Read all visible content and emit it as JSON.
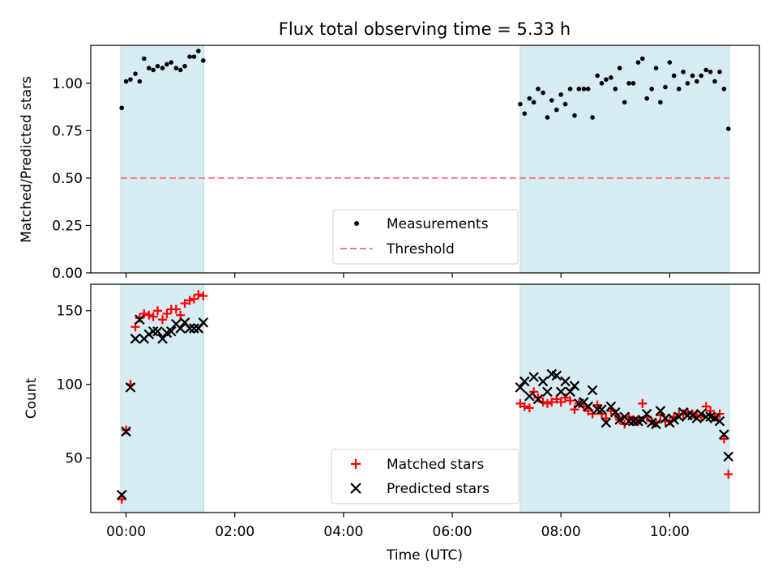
{
  "chart_data": [
    {
      "type": "scatter",
      "title": "Flux total observing time = 5.33 h",
      "xlabel": "",
      "ylabel": "Matched/Predicted stars",
      "x_unit": "hours since 00:00 UTC",
      "xlim": [
        -0.65,
        11.65
      ],
      "ylim": [
        0,
        1.2
      ],
      "yticks": [
        "0.00",
        "0.25",
        "0.50",
        "0.75",
        "1.00"
      ],
      "grid": false,
      "legend_position": "bottom-center",
      "shaded_intervals": [
        [
          -0.1,
          1.43
        ],
        [
          7.25,
          11.1
        ]
      ],
      "threshold": {
        "name": "Threshold",
        "value": 0.5,
        "x_range": [
          -0.1,
          11.1
        ]
      },
      "series": [
        {
          "name": "Measurements",
          "x": [
            -0.08,
            0.0,
            0.08,
            0.17,
            0.25,
            0.33,
            0.42,
            0.5,
            0.58,
            0.67,
            0.75,
            0.83,
            0.92,
            1.0,
            1.08,
            1.17,
            1.25,
            1.33,
            1.42,
            7.25,
            7.33,
            7.42,
            7.5,
            7.58,
            7.67,
            7.75,
            7.83,
            7.92,
            8.0,
            8.08,
            8.17,
            8.25,
            8.33,
            8.42,
            8.5,
            8.58,
            8.67,
            8.75,
            8.83,
            8.92,
            9.0,
            9.08,
            9.17,
            9.25,
            9.33,
            9.42,
            9.5,
            9.58,
            9.67,
            9.75,
            9.83,
            9.92,
            10.0,
            10.08,
            10.17,
            10.25,
            10.33,
            10.42,
            10.5,
            10.58,
            10.67,
            10.75,
            10.83,
            10.92,
            11.0,
            11.08
          ],
          "y": [
            0.87,
            1.01,
            1.02,
            1.05,
            1.01,
            1.13,
            1.08,
            1.07,
            1.09,
            1.08,
            1.1,
            1.11,
            1.08,
            1.07,
            1.09,
            1.14,
            1.14,
            1.17,
            1.12,
            0.89,
            0.84,
            0.92,
            0.9,
            0.97,
            0.95,
            0.82,
            0.91,
            0.86,
            0.94,
            0.89,
            0.97,
            0.83,
            0.97,
            0.97,
            0.97,
            0.82,
            1.04,
            1.0,
            1.02,
            1.03,
            0.97,
            1.08,
            0.9,
            1.0,
            1.0,
            1.11,
            1.13,
            0.92,
            0.97,
            1.08,
            0.9,
            0.98,
            1.11,
            1.04,
            0.97,
            1.06,
            1.0,
            1.04,
            1.01,
            1.04,
            1.07,
            1.06,
            1.01,
            1.06,
            0.97,
            0.76
          ]
        }
      ]
    },
    {
      "type": "scatter",
      "title": "",
      "xlabel": "Time (UTC)",
      "ylabel": "Count",
      "x_unit": "hours since 00:00 UTC",
      "xlim": [
        -0.65,
        11.65
      ],
      "ylim": [
        13,
        168
      ],
      "yticks": [
        "50",
        "100",
        "150"
      ],
      "xticks": [
        "00:00",
        "02:00",
        "04:00",
        "06:00",
        "08:00",
        "10:00"
      ],
      "grid": false,
      "legend_position": "bottom-center",
      "shaded_intervals": [
        [
          -0.1,
          1.43
        ],
        [
          7.25,
          11.1
        ]
      ],
      "series": [
        {
          "name": "Matched stars",
          "marker": "plus",
          "color": "#ff0000",
          "x": [
            -0.08,
            0.0,
            0.08,
            0.17,
            0.25,
            0.33,
            0.42,
            0.5,
            0.58,
            0.67,
            0.75,
            0.83,
            0.92,
            1.0,
            1.08,
            1.17,
            1.25,
            1.33,
            1.42,
            7.25,
            7.33,
            7.42,
            7.5,
            7.58,
            7.67,
            7.75,
            7.83,
            7.92,
            8.0,
            8.08,
            8.17,
            8.25,
            8.33,
            8.42,
            8.5,
            8.58,
            8.67,
            8.75,
            8.83,
            8.92,
            9.0,
            9.08,
            9.17,
            9.25,
            9.33,
            9.42,
            9.5,
            9.58,
            9.67,
            9.75,
            9.83,
            9.92,
            10.0,
            10.08,
            10.17,
            10.25,
            10.33,
            10.42,
            10.5,
            10.58,
            10.67,
            10.75,
            10.83,
            10.92,
            11.0,
            11.08
          ],
          "y": [
            22,
            69,
            100,
            139,
            145,
            148,
            147,
            146,
            150,
            144,
            148,
            151,
            151,
            147,
            155,
            157,
            158,
            161,
            160,
            87,
            85,
            84,
            95,
            91,
            88,
            87,
            88,
            90,
            88,
            91,
            89,
            83,
            87,
            85,
            82,
            80,
            86,
            80,
            77,
            82,
            80,
            76,
            73,
            78,
            76,
            75,
            87,
            78,
            75,
            74,
            79,
            75,
            75,
            78,
            80,
            80,
            81,
            80,
            79,
            78,
            85,
            82,
            78,
            80,
            63,
            39
          ],
          "source_note": "",
          "legend_marker": "+"
        },
        {
          "name": "Predicted stars",
          "marker": "x",
          "color": "#000000",
          "x": [
            -0.08,
            0.0,
            0.08,
            0.17,
            0.25,
            0.33,
            0.42,
            0.5,
            0.58,
            0.67,
            0.75,
            0.83,
            0.92,
            1.0,
            1.08,
            1.17,
            1.25,
            1.33,
            1.42,
            7.25,
            7.33,
            7.42,
            7.5,
            7.58,
            7.67,
            7.75,
            7.83,
            7.92,
            8.0,
            8.08,
            8.17,
            8.25,
            8.33,
            8.42,
            8.5,
            8.58,
            8.67,
            8.75,
            8.83,
            8.92,
            9.0,
            9.08,
            9.17,
            9.25,
            9.33,
            9.42,
            9.5,
            9.58,
            9.67,
            9.75,
            9.83,
            9.92,
            10.0,
            10.08,
            10.17,
            10.25,
            10.33,
            10.42,
            10.5,
            10.58,
            10.67,
            10.75,
            10.83,
            10.92,
            11.0,
            11.08
          ],
          "y": [
            25,
            68,
            98,
            131,
            144,
            131,
            134,
            136,
            136,
            131,
            135,
            136,
            141,
            138,
            142,
            138,
            138,
            138,
            142,
            98,
            102,
            92,
            105,
            90,
            102,
            95,
            107,
            106,
            95,
            102,
            95,
            99,
            87,
            88,
            85,
            96,
            83,
            83,
            74,
            85,
            81,
            76,
            78,
            75,
            75,
            75,
            76,
            80,
            74,
            73,
            82,
            77,
            74,
            76,
            78,
            81,
            79,
            79,
            77,
            80,
            78,
            78,
            77,
            75,
            66,
            51
          ],
          "legend_marker": "x"
        }
      ]
    }
  ]
}
